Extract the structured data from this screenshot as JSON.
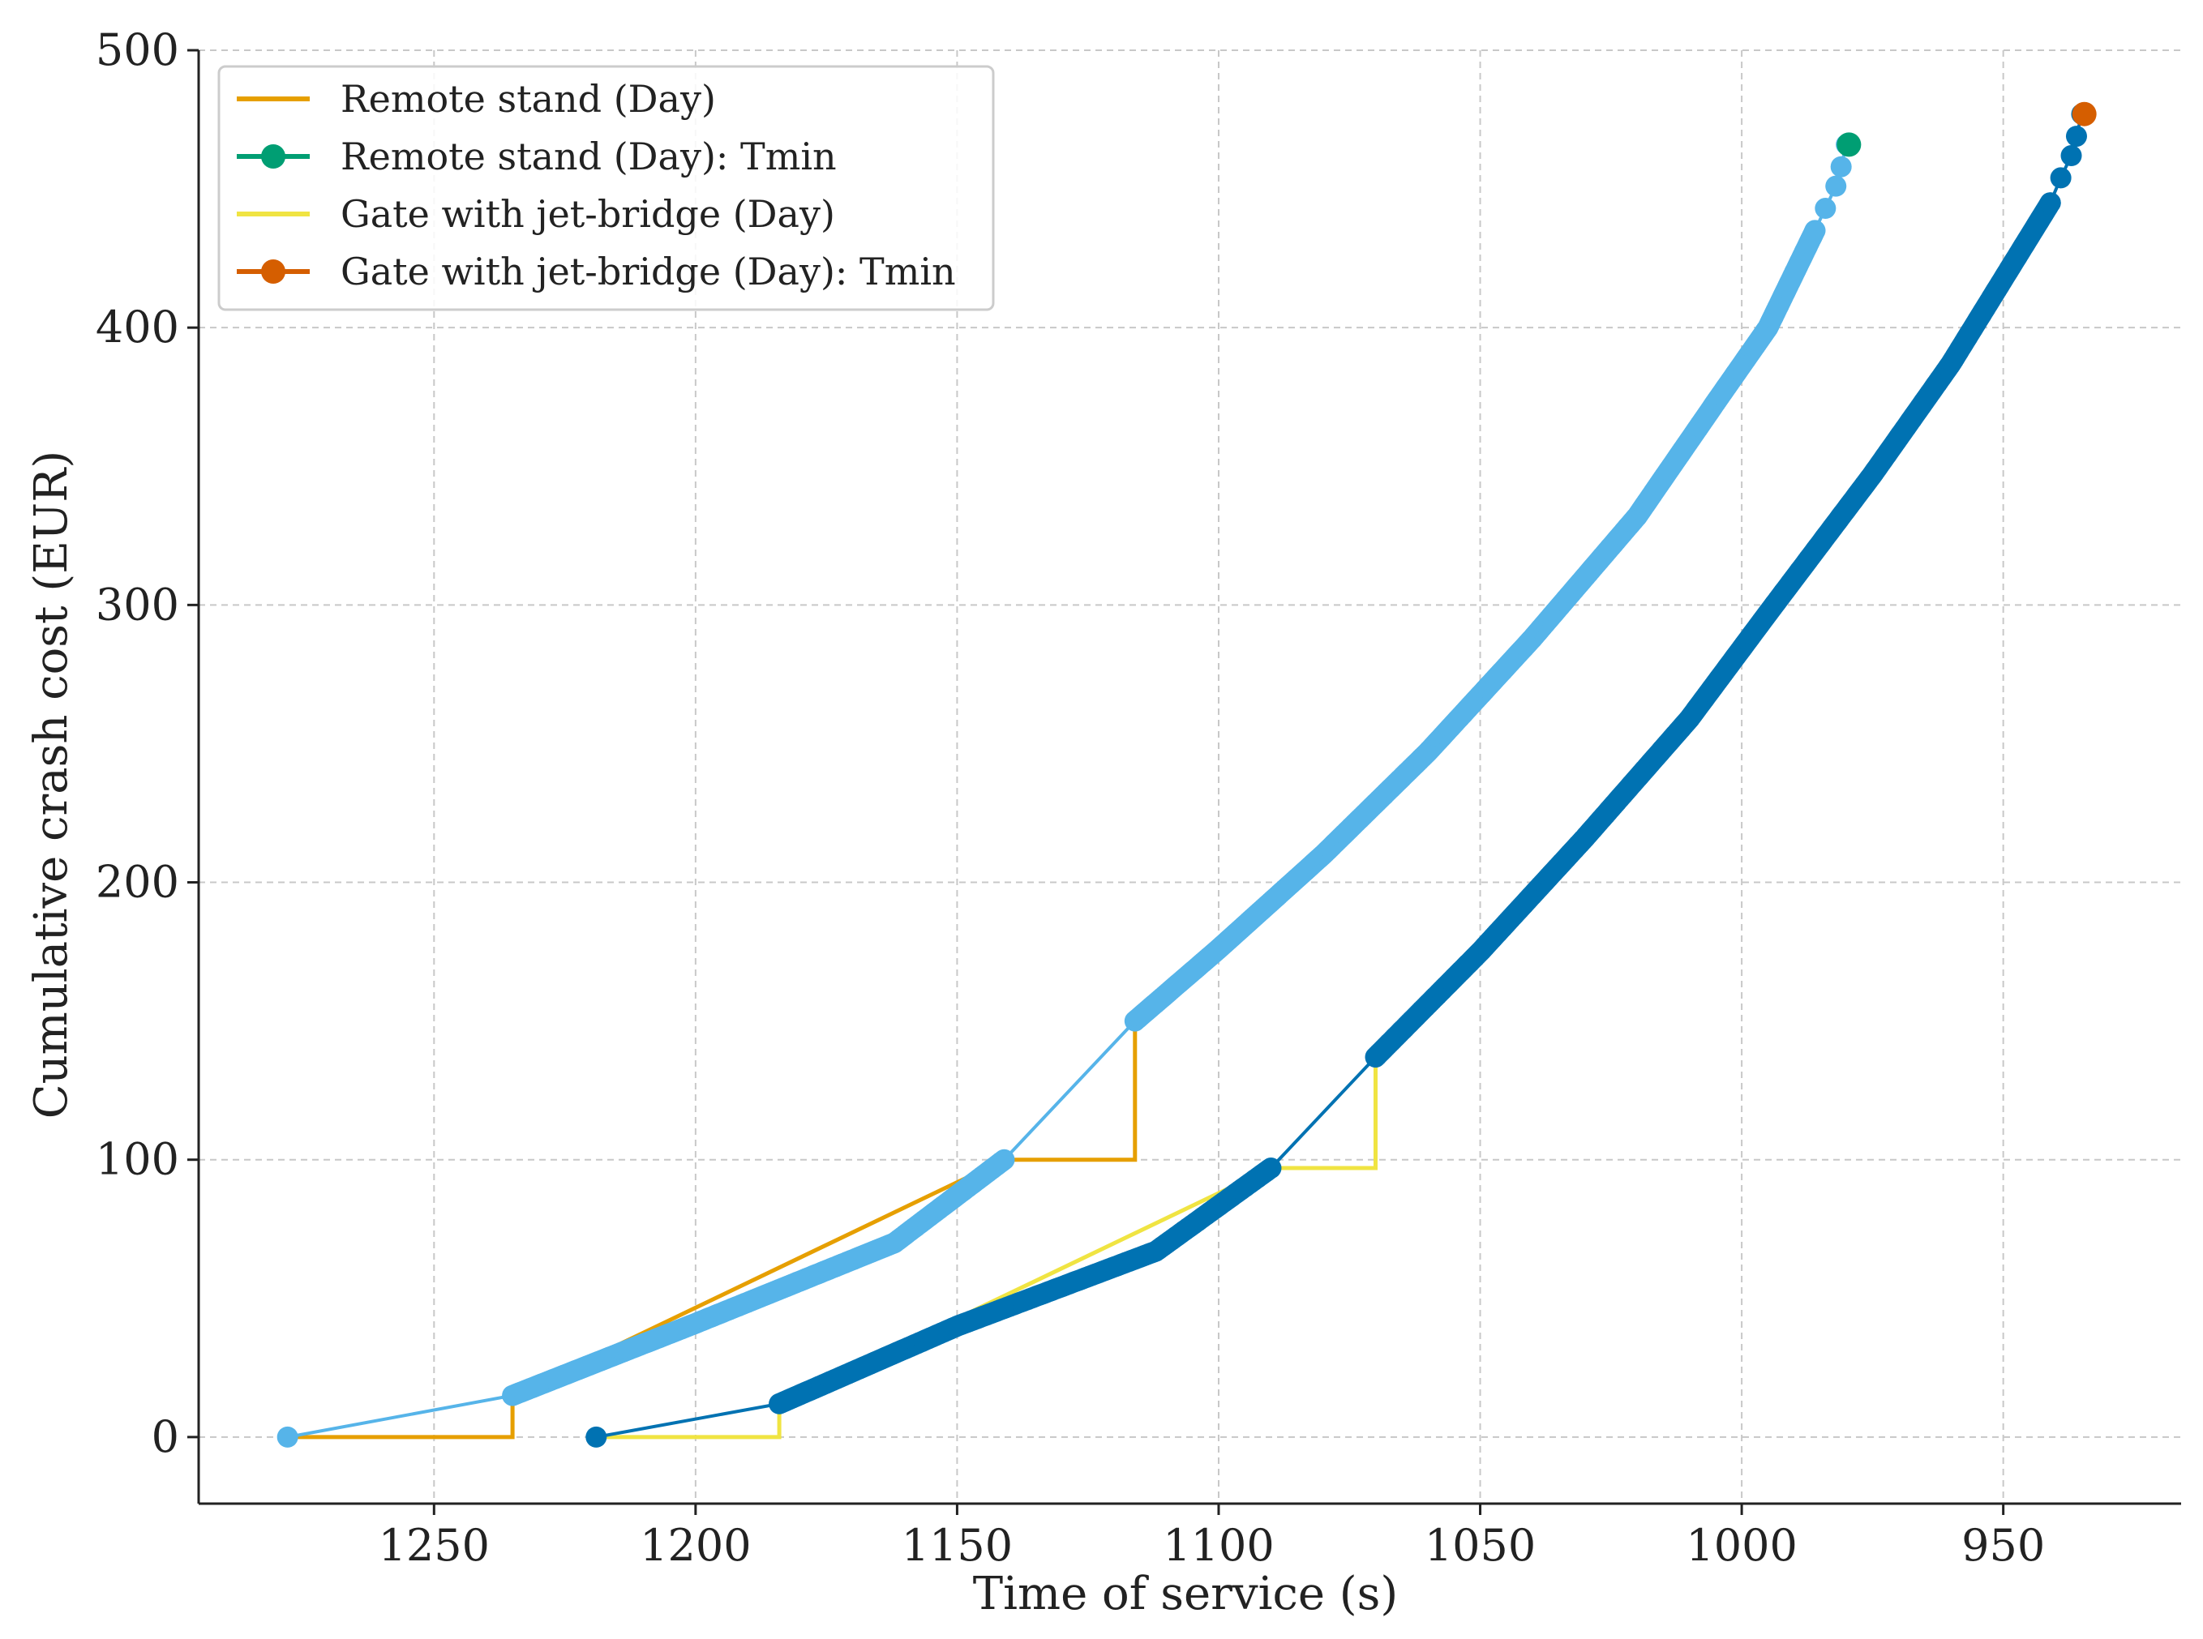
{
  "chart_data": {
    "type": "line",
    "title": "",
    "xlabel": "Time of service (s)",
    "ylabel": "Cumulative crash cost (EUR)",
    "xlim": [
      1295,
      916
    ],
    "x_inverted": true,
    "ylim": [
      -24,
      500
    ],
    "xticks": [
      1250,
      1200,
      1150,
      1100,
      1050,
      1000,
      950
    ],
    "yticks": [
      0,
      100,
      200,
      300,
      400,
      500
    ],
    "grid": true,
    "grid_style": "dashed",
    "legend_position": "top-left",
    "legend": [
      {
        "label": "Remote stand (Day)",
        "color": "#E69F00",
        "marker": false
      },
      {
        "label": "Remote stand (Day): Tmin",
        "color": "#009E73",
        "marker": true
      },
      {
        "label": "Gate with jet-bridge (Day)",
        "color": "#F0E442",
        "marker": false
      },
      {
        "label": "Gate with jet-bridge (Day): Tmin",
        "color": "#D55E00",
        "marker": true
      }
    ],
    "series": [
      {
        "name": "Remote stand (Day)",
        "color": "#E69F00",
        "style": "step",
        "points": [
          [
            1278,
            0
          ],
          [
            1235,
            0
          ],
          [
            1235,
            15
          ],
          [
            1141,
            100
          ],
          [
            1116,
            100
          ],
          [
            1116,
            150
          ]
        ]
      },
      {
        "name": "Gate with jet-bridge (Day)",
        "color": "#F0E442",
        "style": "step",
        "points": [
          [
            1219,
            0
          ],
          [
            1184,
            0
          ],
          [
            1184,
            12
          ],
          [
            1090,
            97
          ],
          [
            1070,
            97
          ],
          [
            1070,
            137
          ]
        ]
      },
      {
        "color": "#56B4E9",
        "style": "dense-markers",
        "points": [
          [
            1278,
            0
          ],
          [
            1235,
            15
          ],
          [
            1200,
            41
          ],
          [
            1162,
            70
          ],
          [
            1141,
            100
          ],
          [
            1116,
            150
          ],
          [
            1100,
            176
          ],
          [
            1080,
            210
          ],
          [
            1060,
            247
          ],
          [
            1040,
            288
          ],
          [
            1020,
            332
          ],
          [
            1005,
            373
          ],
          [
            995,
            400
          ],
          [
            986,
            435
          ],
          [
            984,
            443
          ],
          [
            982,
            451
          ],
          [
            981,
            458
          ],
          [
            980,
            466
          ]
        ]
      },
      {
        "color": "#0072B2",
        "style": "dense-markers",
        "points": [
          [
            1219,
            0
          ],
          [
            1184,
            12
          ],
          [
            1150,
            40
          ],
          [
            1112,
            67
          ],
          [
            1090,
            97
          ],
          [
            1070,
            137
          ],
          [
            1050,
            175
          ],
          [
            1030,
            216
          ],
          [
            1010,
            259
          ],
          [
            995,
            297
          ],
          [
            975,
            347
          ],
          [
            960,
            387
          ],
          [
            941,
            445
          ],
          [
            939,
            454
          ],
          [
            937,
            462
          ],
          [
            936,
            469
          ],
          [
            935,
            477
          ]
        ]
      },
      {
        "name": "Remote stand (Day): Tmin",
        "color": "#009E73",
        "style": "marker",
        "points": [
          [
            979.5,
            466
          ]
        ]
      },
      {
        "name": "Gate with jet-bridge (Day): Tmin",
        "color": "#D55E00",
        "style": "marker",
        "points": [
          [
            934.5,
            477
          ]
        ]
      }
    ]
  }
}
